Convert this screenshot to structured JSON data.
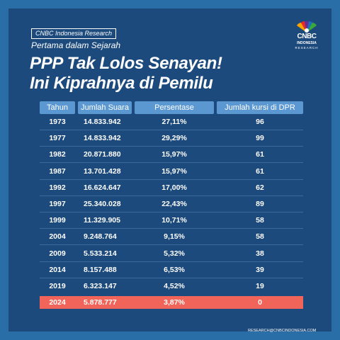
{
  "header": {
    "source_tag": "CNBC Indonesia Research",
    "subtitle": "Pertama dalam Sejarah",
    "title_line1": "PPP Tak Lolos Senayan!",
    "title_line2": "Ini Kiprahnya di Pemilu"
  },
  "logo": {
    "wordmark": "CNBC",
    "sub": "INDONESIA",
    "sub2": "RESEARCH"
  },
  "colors": {
    "background": "#1c4a7c",
    "border": "#2a6ea8",
    "header_cell": "#5b97d0",
    "highlight_row": "#f0645a"
  },
  "table": {
    "columns": [
      "Tahun",
      "Jumlah Suara",
      "Persentase",
      "Jumlah kursi di DPR"
    ],
    "rows": [
      {
        "year": "1973",
        "votes": "14.833.942",
        "percent": "27,11%",
        "seats": "96"
      },
      {
        "year": "1977",
        "votes": "14.833.942",
        "percent": "29,29%",
        "seats": "99"
      },
      {
        "year": "1982",
        "votes": "20.871.880",
        "percent": "15,97%",
        "seats": "61"
      },
      {
        "year": "1987",
        "votes": "13.701.428",
        "percent": "15,97%",
        "seats": "61"
      },
      {
        "year": "1992",
        "votes": "16.624.647",
        "percent": "17,00%",
        "seats": "62"
      },
      {
        "year": "1997",
        "votes": "25.340.028",
        "percent": "22,43%",
        "seats": "89"
      },
      {
        "year": "1999",
        "votes": "11.329.905",
        "percent": "10,71%",
        "seats": "58"
      },
      {
        "year": "2004",
        "votes": "9.248.764",
        "percent": "9,15%",
        "seats": "58"
      },
      {
        "year": "2009",
        "votes": "5.533.214",
        "percent": "5,32%",
        "seats": "38"
      },
      {
        "year": "2014",
        "votes": "8.157.488",
        "percent": "6,53%",
        "seats": "39"
      },
      {
        "year": "2019",
        "votes": "6.323.147",
        "percent": "4,52%",
        "seats": "19"
      },
      {
        "year": "2024",
        "votes": "5.878.777",
        "percent": "3,87%",
        "seats": "0",
        "highlight": true
      }
    ]
  },
  "footer": {
    "email": "RESEARCH@CNBCINDONESIA.COM"
  }
}
